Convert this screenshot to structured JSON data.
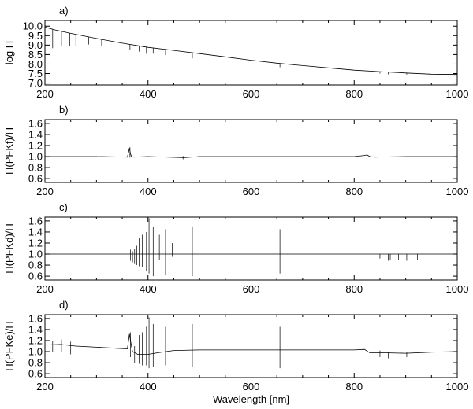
{
  "chart_data": [
    {
      "panel_label": "a)",
      "type": "line",
      "ylabel": "log H",
      "xlim": [
        200,
        1000
      ],
      "ylim": [
        6.9,
        10.3
      ],
      "xticks": [
        200,
        400,
        600,
        800,
        1000
      ],
      "yticks": [
        7.0,
        7.5,
        8.0,
        8.5,
        9.0,
        9.5,
        10.0
      ],
      "ytick_labels": [
        "7.0",
        "7.5",
        "8.0",
        "8.5",
        "9.0",
        "9.5",
        "10.0"
      ],
      "series": [
        {
          "x": [
            200,
            220,
            250,
            300,
            350,
            400,
            450,
            500,
            550,
            600,
            650,
            700,
            750,
            800,
            850,
            900,
            950,
            1000
          ],
          "y": [
            9.95,
            9.8,
            9.62,
            9.35,
            9.1,
            8.88,
            8.72,
            8.55,
            8.38,
            8.2,
            8.05,
            7.92,
            7.8,
            7.68,
            7.6,
            7.53,
            7.47,
            7.45
          ]
        }
      ],
      "absorption_lines": [
        {
          "x": 215,
          "depth": 1.0
        },
        {
          "x": 232,
          "depth": 0.8
        },
        {
          "x": 248,
          "depth": 0.7
        },
        {
          "x": 260,
          "depth": 0.6
        },
        {
          "x": 285,
          "depth": 0.4
        },
        {
          "x": 310,
          "depth": 0.35
        },
        {
          "x": 365,
          "depth": 0.3
        },
        {
          "x": 383,
          "depth": 0.3
        },
        {
          "x": 397,
          "depth": 0.35
        },
        {
          "x": 410,
          "depth": 0.3
        },
        {
          "x": 434,
          "depth": 0.3
        },
        {
          "x": 486,
          "depth": 0.3
        },
        {
          "x": 656,
          "depth": 0.2
        },
        {
          "x": 850,
          "depth": 0.1
        },
        {
          "x": 866,
          "depth": 0.12
        },
        {
          "x": 902,
          "depth": 0.08
        },
        {
          "x": 955,
          "depth": 0.08
        }
      ]
    },
    {
      "panel_label": "b)",
      "type": "line",
      "ylabel": "H(PFKf)/H",
      "xlim": [
        200,
        1000
      ],
      "ylim": [
        0.53,
        1.67
      ],
      "xticks": [
        200,
        400,
        600,
        800,
        1000
      ],
      "yticks": [
        0.6,
        0.8,
        1.0,
        1.2,
        1.4,
        1.6
      ],
      "ytick_labels": [
        "0.6",
        "0.8",
        "1.0",
        "1.2",
        "1.4",
        "1.6"
      ],
      "series": [
        {
          "x": [
            200,
            300,
            360,
            364,
            366,
            368,
            372,
            400,
            470,
            500,
            600,
            700,
            800,
            820,
            825,
            830,
            840,
            900,
            1000
          ],
          "y": [
            1.0,
            1.0,
            0.99,
            1.15,
            1.05,
            1.0,
            0.99,
            1.0,
            0.98,
            1.0,
            1.0,
            1.0,
            1.0,
            1.02,
            1.03,
            1.0,
            0.99,
            1.0,
            1.0
          ]
        }
      ],
      "spikes": [
        {
          "x": 365,
          "ymin": 0.98,
          "ymax": 1.17
        },
        {
          "x": 468,
          "ymin": 0.95,
          "ymax": 1.01
        }
      ]
    },
    {
      "panel_label": "c)",
      "type": "line",
      "ylabel": "H(PFKd)/H",
      "xlim": [
        200,
        1000
      ],
      "ylim": [
        0.53,
        1.67
      ],
      "xticks": [
        200,
        400,
        600,
        800,
        1000
      ],
      "yticks": [
        0.6,
        0.8,
        1.0,
        1.2,
        1.4,
        1.6
      ],
      "ytick_labels": [
        "0.6",
        "0.8",
        "1.0",
        "1.2",
        "1.4",
        "1.6"
      ],
      "series": [
        {
          "x": [
            200,
            360,
            400,
            500,
            600,
            700,
            800,
            850,
            1000
          ],
          "y": [
            1.0,
            1.0,
            1.0,
            1.0,
            1.0,
            1.0,
            1.0,
            1.0,
            1.0
          ]
        }
      ],
      "spikes": [
        {
          "x": 366,
          "ymin": 0.88,
          "ymax": 1.08
        },
        {
          "x": 370,
          "ymin": 0.85,
          "ymax": 1.05
        },
        {
          "x": 374,
          "ymin": 0.82,
          "ymax": 1.1
        },
        {
          "x": 378,
          "ymin": 0.8,
          "ymax": 1.15
        },
        {
          "x": 383,
          "ymin": 0.78,
          "ymax": 1.3
        },
        {
          "x": 389,
          "ymin": 0.76,
          "ymax": 1.35
        },
        {
          "x": 397,
          "ymin": 0.7,
          "ymax": 1.4
        },
        {
          "x": 402,
          "ymin": 0.65,
          "ymax": 1.65
        },
        {
          "x": 410,
          "ymin": 0.6,
          "ymax": 1.5
        },
        {
          "x": 422,
          "ymin": 0.9,
          "ymax": 1.35
        },
        {
          "x": 434,
          "ymin": 0.62,
          "ymax": 1.45
        },
        {
          "x": 447,
          "ymin": 0.95,
          "ymax": 1.2
        },
        {
          "x": 486,
          "ymin": 0.6,
          "ymax": 1.5
        },
        {
          "x": 656,
          "ymin": 0.65,
          "ymax": 1.45
        },
        {
          "x": 850,
          "ymin": 0.92,
          "ymax": 1.0
        },
        {
          "x": 854,
          "ymin": 0.9,
          "ymax": 1.0
        },
        {
          "x": 866,
          "ymin": 0.88,
          "ymax": 1.0
        },
        {
          "x": 870,
          "ymin": 0.9,
          "ymax": 1.0
        },
        {
          "x": 886,
          "ymin": 0.9,
          "ymax": 1.0
        },
        {
          "x": 902,
          "ymin": 0.88,
          "ymax": 1.0
        },
        {
          "x": 923,
          "ymin": 0.9,
          "ymax": 1.0
        },
        {
          "x": 955,
          "ymin": 0.95,
          "ymax": 1.1
        }
      ]
    },
    {
      "panel_label": "d)",
      "type": "line",
      "ylabel": "H(PFKe)/H",
      "xlabel": "Wavelength [nm]",
      "xlim": [
        200,
        1000
      ],
      "ylim": [
        0.53,
        1.67
      ],
      "xticks": [
        200,
        400,
        600,
        800,
        1000
      ],
      "yticks": [
        0.6,
        0.8,
        1.0,
        1.2,
        1.4,
        1.6
      ],
      "ytick_labels": [
        "0.6",
        "0.8",
        "1.0",
        "1.2",
        "1.4",
        "1.6"
      ],
      "series": [
        {
          "x": [
            200,
            230,
            260,
            300,
            340,
            360,
            364,
            366,
            370,
            380,
            400,
            420,
            450,
            500,
            600,
            700,
            800,
            820,
            830,
            850,
            900,
            950,
            1000
          ],
          "y": [
            1.12,
            1.13,
            1.1,
            1.08,
            1.06,
            1.05,
            1.32,
            1.2,
            1.0,
            0.95,
            0.95,
            0.98,
            1.02,
            1.03,
            1.03,
            1.03,
            1.03,
            1.04,
            0.98,
            0.98,
            0.97,
            0.99,
            1.0
          ]
        }
      ],
      "spikes": [
        {
          "x": 215,
          "ymin": 1.0,
          "ymax": 1.2
        },
        {
          "x": 232,
          "ymin": 1.0,
          "ymax": 1.22
        },
        {
          "x": 250,
          "ymin": 0.95,
          "ymax": 1.18
        },
        {
          "x": 366,
          "ymin": 0.9,
          "ymax": 1.35
        },
        {
          "x": 374,
          "ymin": 0.8,
          "ymax": 1.1
        },
        {
          "x": 383,
          "ymin": 0.78,
          "ymax": 1.3
        },
        {
          "x": 389,
          "ymin": 0.75,
          "ymax": 1.35
        },
        {
          "x": 397,
          "ymin": 0.75,
          "ymax": 1.45
        },
        {
          "x": 402,
          "ymin": 0.7,
          "ymax": 1.62
        },
        {
          "x": 410,
          "ymin": 0.72,
          "ymax": 1.5
        },
        {
          "x": 434,
          "ymin": 0.75,
          "ymax": 1.45
        },
        {
          "x": 486,
          "ymin": 0.72,
          "ymax": 1.5
        },
        {
          "x": 656,
          "ymin": 0.7,
          "ymax": 1.45
        },
        {
          "x": 850,
          "ymin": 0.9,
          "ymax": 1.02
        },
        {
          "x": 866,
          "ymin": 0.88,
          "ymax": 1.0
        },
        {
          "x": 902,
          "ymin": 0.9,
          "ymax": 1.0
        },
        {
          "x": 955,
          "ymin": 0.92,
          "ymax": 1.08
        }
      ]
    }
  ]
}
